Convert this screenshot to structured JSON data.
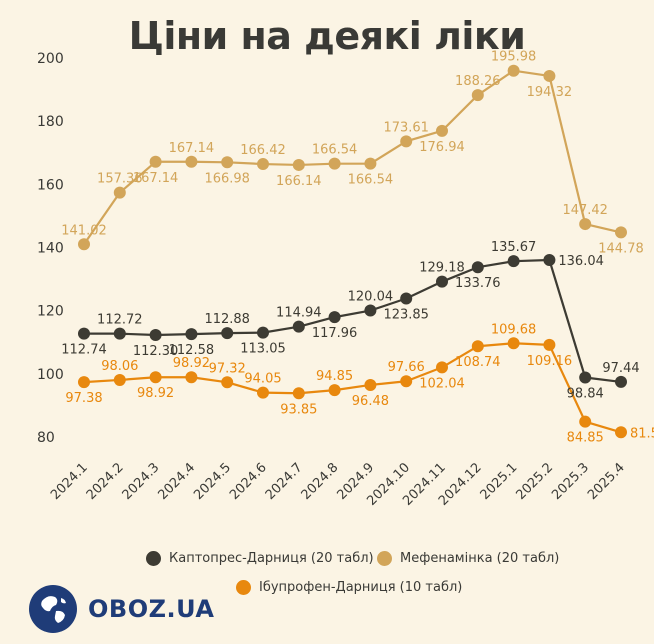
{
  "title": "Ціни на деякі ліки",
  "colors": {
    "kaptopres": "#3d3b33",
    "mefenaminka": "#d2a559",
    "ibuprofen": "#e8880e",
    "brand": "#1f3c78"
  },
  "brand": {
    "text": "OBOZ.UA"
  },
  "chart_data": {
    "type": "line",
    "title": "Ціни на деякі ліки",
    "x": [
      "2024.1",
      "2024.2",
      "2024.3",
      "2024.4",
      "2024.5",
      "2024.6",
      "2024.7",
      "2024.8",
      "2024.9",
      "2024.10",
      "2024.11",
      "2024.12",
      "2025.1",
      "2025.2",
      "2025.3",
      "2025.4"
    ],
    "ylim": [
      80,
      200
    ],
    "yticks": [
      80,
      100,
      120,
      140,
      160,
      180,
      200
    ],
    "grid": false,
    "legend_placement": "bottom",
    "series": [
      {
        "name": "Каптопрес-Дарниця (20 табл)",
        "color": "#3d3b33",
        "values": [
          112.74,
          112.72,
          112.3,
          112.58,
          112.88,
          113.05,
          114.94,
          117.96,
          120.04,
          123.85,
          129.18,
          133.76,
          135.67,
          136.04,
          98.84,
          97.44
        ],
        "labels": [
          "112.74",
          "112.72",
          "112.30",
          "112.58",
          "112.88",
          "113.05",
          "114.94",
          "117.96",
          "120.04",
          "123.85",
          "129.18",
          "133.76",
          "135.67",
          "136.04",
          "98.84",
          "97.44"
        ]
      },
      {
        "name": "Мефенамінка (20 табл)",
        "color": "#d2a559",
        "values": [
          141.02,
          157.36,
          167.14,
          167.14,
          166.98,
          166.42,
          166.14,
          166.54,
          166.54,
          173.61,
          176.94,
          188.26,
          195.98,
          194.32,
          147.42,
          144.78
        ],
        "labels": [
          "141.02",
          "157.36",
          "167.14",
          "167.14",
          "166.98",
          "166.42",
          "166.14",
          "166.54",
          "166.54",
          "173.61",
          "176.94",
          "188.26",
          "195.98",
          "194.32",
          "147.42",
          "144.78"
        ]
      },
      {
        "name": "Ібупрофен-Дарниця (10 табл)",
        "color": "#e8880e",
        "values": [
          97.38,
          98.06,
          98.92,
          98.92,
          97.32,
          94.05,
          93.85,
          94.85,
          96.48,
          97.66,
          102.04,
          108.74,
          109.68,
          109.16,
          84.85,
          81.5
        ],
        "labels": [
          "97.38",
          "98.06",
          "98.92",
          "98.92",
          "97.32",
          "94.05",
          "93.85",
          "94.85",
          "96.48",
          "97.66",
          "102.04",
          "108.74",
          "109.68",
          "109.16",
          "84.85",
          "81.5"
        ]
      }
    ]
  }
}
